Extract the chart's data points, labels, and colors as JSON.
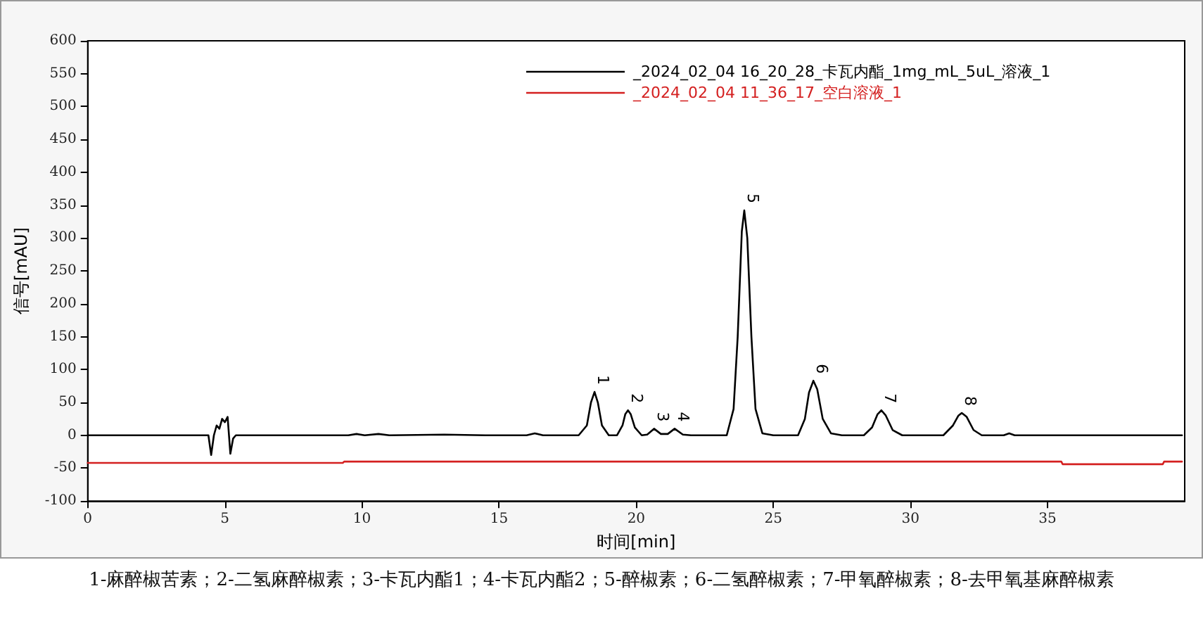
{
  "chart_data": {
    "type": "line",
    "xlabel": "时间[min]",
    "ylabel": "信号[mAU]",
    "xlim": [
      0,
      40
    ],
    "xticks": [
      0,
      5,
      10,
      15,
      20,
      25,
      30,
      35
    ],
    "ylim": [
      -100,
      600
    ],
    "yticks": [
      -100,
      -50,
      0,
      50,
      100,
      150,
      200,
      250,
      300,
      350,
      400,
      450,
      500,
      550,
      600
    ],
    "grid": false,
    "legend": "top right",
    "marker": "none",
    "line_style": "solid",
    "series": [
      {
        "name": "_2024_02_04 16_20_28_卡瓦内酯_1mg_mL_5uL_溶液_1",
        "color": "#000000",
        "x": [
          0,
          4.4,
          4.5,
          4.6,
          4.7,
          4.8,
          4.9,
          5.0,
          5.1,
          5.2,
          5.3,
          5.4,
          9.5,
          9.8,
          10.1,
          10.6,
          11,
          13,
          14.5,
          16,
          16.3,
          16.6,
          17.9,
          18.2,
          18.35,
          18.48,
          18.6,
          18.75,
          19.0,
          19.3,
          19.5,
          19.6,
          19.7,
          19.8,
          19.95,
          20.2,
          20.4,
          20.65,
          20.9,
          21.15,
          21.4,
          21.7,
          22.0,
          23.3,
          23.55,
          23.7,
          23.85,
          23.94,
          24.05,
          24.2,
          24.35,
          24.6,
          25.0,
          25.9,
          26.15,
          26.3,
          26.46,
          26.6,
          26.8,
          27.1,
          27.5,
          28.3,
          28.6,
          28.8,
          28.94,
          29.1,
          29.35,
          29.7,
          31.2,
          31.55,
          31.75,
          31.87,
          32.05,
          32.3,
          32.6,
          33.4,
          33.6,
          33.8,
          39.9
        ],
        "values": [
          0,
          0,
          -30,
          0,
          15,
          10,
          25,
          20,
          28,
          -28,
          -5,
          0,
          0,
          2,
          0,
          2,
          0,
          1,
          0,
          0,
          3,
          0,
          0,
          15,
          50,
          66,
          50,
          15,
          0,
          0,
          15,
          32,
          38,
          32,
          12,
          0,
          1,
          10,
          2,
          2,
          10,
          1,
          0,
          0,
          40,
          150,
          310,
          342,
          300,
          150,
          40,
          3,
          0,
          0,
          25,
          65,
          83,
          70,
          25,
          3,
          0,
          0,
          12,
          32,
          38,
          30,
          8,
          0,
          0,
          15,
          30,
          34,
          28,
          8,
          0,
          0,
          3,
          0,
          0
        ]
      },
      {
        "name": "_2024_02_04 11_36_17_空白溶液_1",
        "color": "#d42020",
        "x": [
          0,
          9.3,
          9.35,
          35.5,
          35.55,
          39.2,
          39.25,
          39.9
        ],
        "values": [
          -42,
          -42,
          -40,
          -40,
          -44,
          -44,
          -40,
          -40
        ]
      }
    ],
    "annotations": [
      {
        "text": "1",
        "x": 18.48,
        "y": 66
      },
      {
        "text": "2",
        "x": 19.7,
        "y": 38
      },
      {
        "text": "3",
        "x": 20.65,
        "y": 10
      },
      {
        "text": "4",
        "x": 21.4,
        "y": 10
      },
      {
        "text": "5",
        "x": 23.94,
        "y": 342
      },
      {
        "text": "6",
        "x": 26.46,
        "y": 83
      },
      {
        "text": "7",
        "x": 28.94,
        "y": 38
      },
      {
        "text": "8",
        "x": 31.87,
        "y": 34
      },
      "1-麻醉椒苦素；2-二氢麻醉椒素；3-卡瓦内酯1；4-卡瓦内酯2；5-醉椒素；6-二氢醉椒素；7-甲氧醉椒素；8-去甲氧基麻醉椒素"
    ]
  }
}
